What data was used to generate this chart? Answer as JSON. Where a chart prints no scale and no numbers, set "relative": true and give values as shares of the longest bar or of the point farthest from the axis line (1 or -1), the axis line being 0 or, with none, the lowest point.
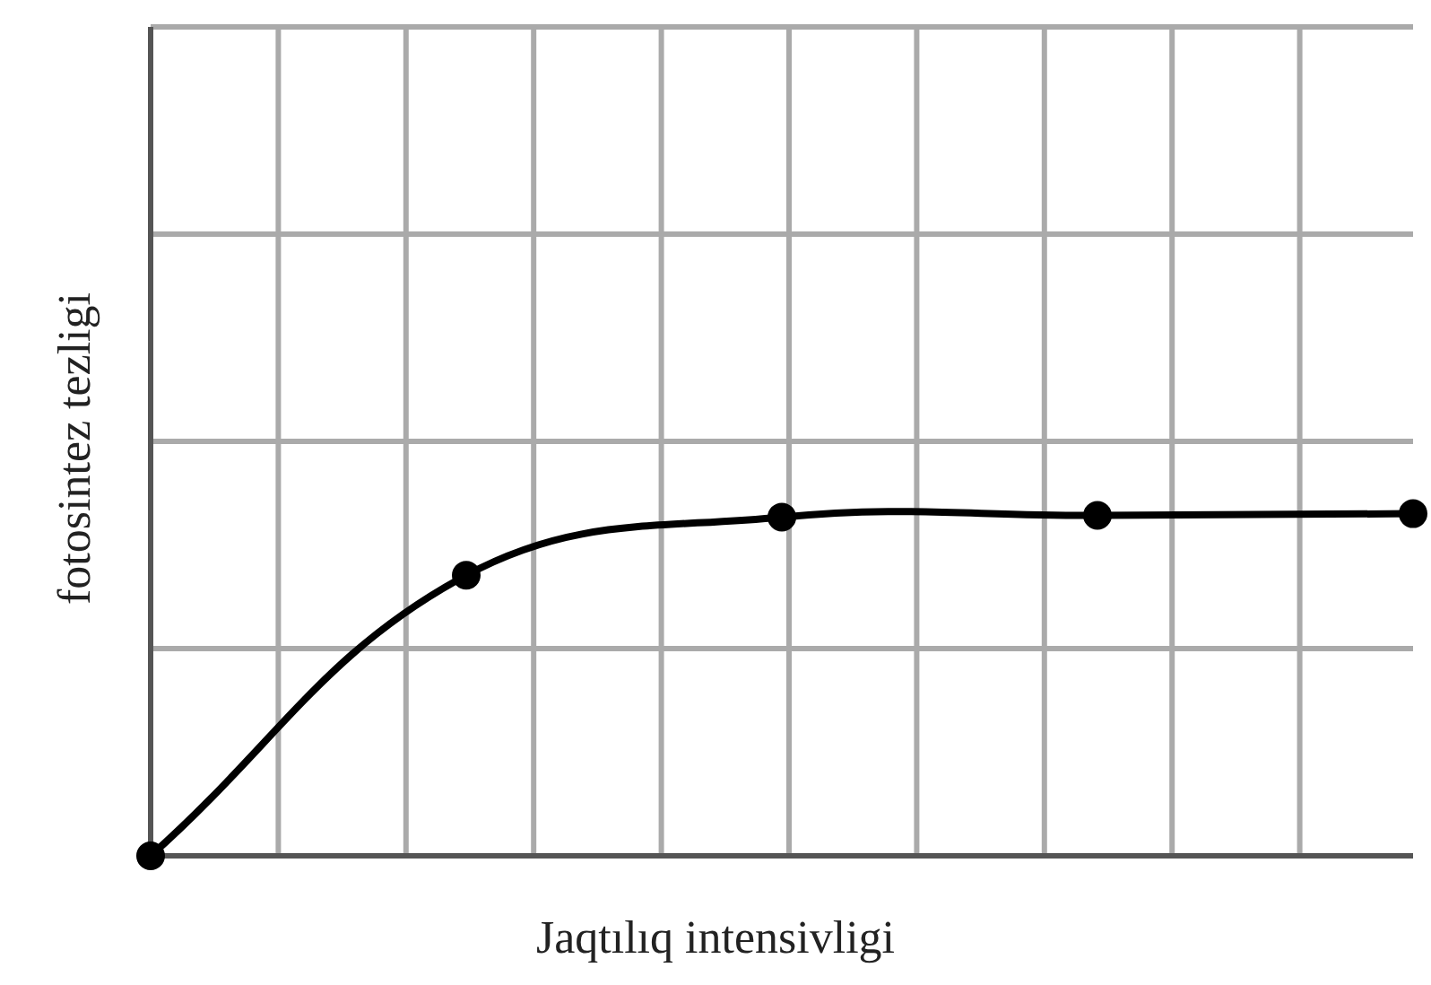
{
  "chart_data": {
    "type": "line",
    "relative": true,
    "xlabel": "Jaqtılıq intensivligi",
    "ylabel": "fotosintez tezligi",
    "categories": [
      null,
      null,
      null,
      null,
      null
    ],
    "series": [
      {
        "color": "#000000",
        "values": [
          0,
          0.82,
          0.99,
          0.995,
          1
        ]
      }
    ],
    "marker": "circle",
    "line_style": "solid",
    "grid": true,
    "legend": false
  }
}
